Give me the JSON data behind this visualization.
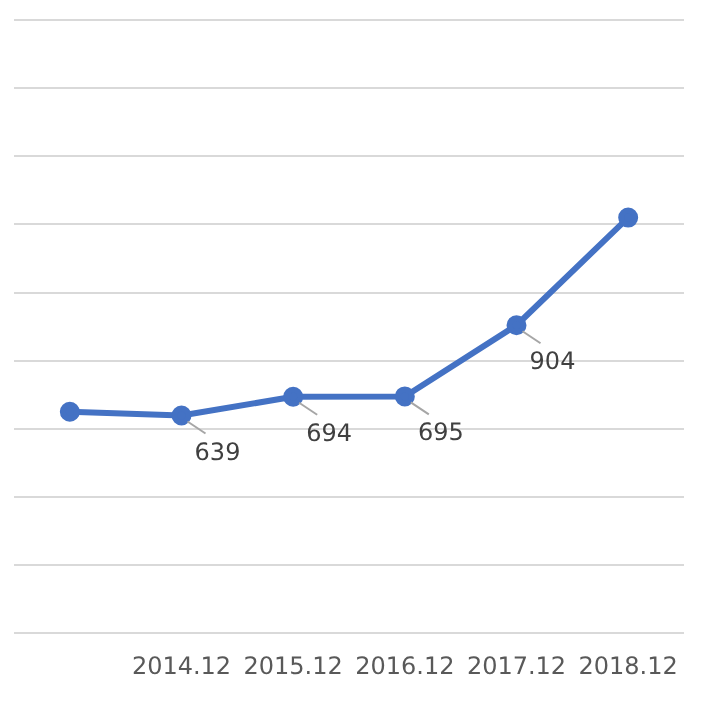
{
  "chart_data": {
    "type": "line",
    "categories": [
      null,
      "2014.12",
      "2015.12",
      "2016.12",
      "2017.12",
      "2018.12"
    ],
    "series": [
      {
        "color": "#4472c4",
        "values": [
          650,
          639,
          694,
          695,
          904,
          1220
        ],
        "value_labels": [
          null,
          "639",
          "694",
          "695",
          "904",
          null
        ]
      }
    ],
    "ylim": [
      0,
      1800
    ],
    "yticks": [
      {
        "value": 0,
        "label": null
      },
      {
        "value": 200,
        "label": null
      },
      {
        "value": 400,
        "label": null
      },
      {
        "value": 600,
        "label": null
      },
      {
        "value": 800,
        "label": null
      },
      {
        "value": 1000,
        "label": null
      },
      {
        "value": 1200,
        "label": null
      },
      {
        "value": 1400,
        "label": null
      },
      {
        "value": 1600,
        "label": null
      },
      {
        "value": 1800,
        "label": null
      }
    ],
    "tick_labels": "x",
    "grid": "y",
    "marker": "circle",
    "line_style": "solid",
    "legend": false
  }
}
